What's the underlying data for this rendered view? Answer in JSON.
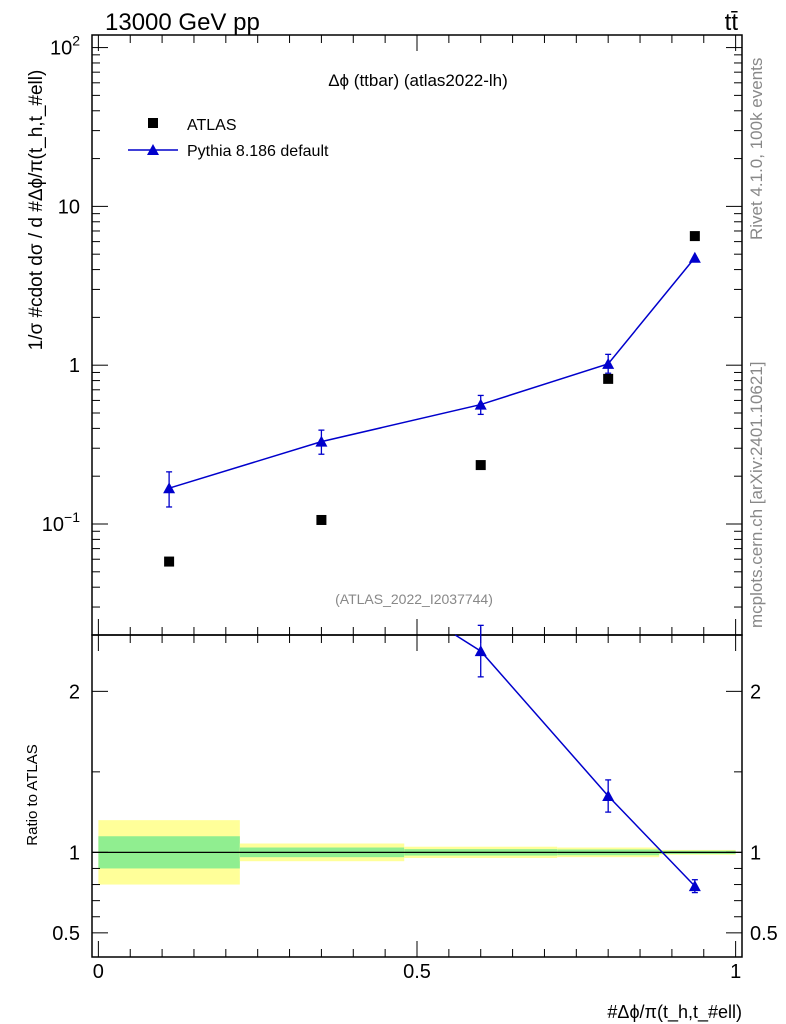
{
  "header": {
    "energy_label": "13000 GeV pp",
    "process_label": "tt̄"
  },
  "side_labels": {
    "rivet": "Rivet 4.1.0,  100k events",
    "mcplots": "mcplots.cern.ch [arXiv:2401.10621]"
  },
  "chart_data": [
    {
      "type": "scatter",
      "panel": "main",
      "title": "Δϕ (ttbar) (atlas2022-lh)",
      "watermark": "(ATLAS_2022_I2037744)",
      "ylabel": "1/σ #cdot dσ / d #Δϕ/π(t_h,t_#ell)",
      "yscale": "log",
      "ylim": [
        0.02,
        120
      ],
      "xlim": [
        -0.01,
        1.01
      ],
      "ytick_labels": [
        "10^-1",
        "1",
        "10",
        "10^2"
      ],
      "legend_position": "top-left",
      "series": [
        {
          "name": "ATLAS",
          "marker": "square",
          "color": "#000000",
          "x": [
            0.111,
            0.35,
            0.6,
            0.8,
            0.936
          ],
          "y": [
            0.058,
            0.106,
            0.235,
            0.82,
            6.5
          ]
        },
        {
          "name": "Pythia 8.186 default",
          "marker": "triangle",
          "color": "#0000cc",
          "x": [
            0.111,
            0.35,
            0.6,
            0.8,
            0.936
          ],
          "y": [
            0.168,
            0.33,
            0.565,
            1.02,
            4.75
          ],
          "yerr_low": [
            0.04,
            0.055,
            0.075,
            0.13,
            0
          ],
          "yerr_high": [
            0.045,
            0.06,
            0.08,
            0.15,
            0
          ]
        }
      ]
    },
    {
      "type": "line",
      "panel": "ratio",
      "ylabel": "Ratio to ATLAS",
      "xlabel": "#Δϕ/π(t_h,t_#ell)",
      "ylim": [
        0.35,
        2.35
      ],
      "xlim": [
        -0.01,
        1.01
      ],
      "xtick_labels": [
        "0",
        "0.5",
        "1"
      ],
      "ytick_labels": [
        "0.5",
        "1",
        "2"
      ],
      "uncertainty_bands": {
        "bin_edges": [
          0.0,
          0.222,
          0.48,
          0.72,
          0.88,
          1.0
        ],
        "stat_half_width": [
          0.1,
          0.03,
          0.02,
          0.018,
          0.01
        ],
        "total_half_width": [
          0.2,
          0.055,
          0.035,
          0.03,
          0.015
        ],
        "stat_color": "#90ee90",
        "total_color": "#ffff99"
      },
      "series": [
        {
          "name": "Pythia 8.186 default",
          "color": "#0000cc",
          "x": [
            0.56,
            0.6,
            0.8,
            0.936
          ],
          "y": [
            2.35,
            2.25,
            1.35,
            0.79
          ],
          "yerr_low": [
            null,
            0.16,
            0.1,
            0.04
          ],
          "yerr_high": [
            null,
            0.16,
            0.1,
            0.04
          ]
        }
      ]
    }
  ]
}
